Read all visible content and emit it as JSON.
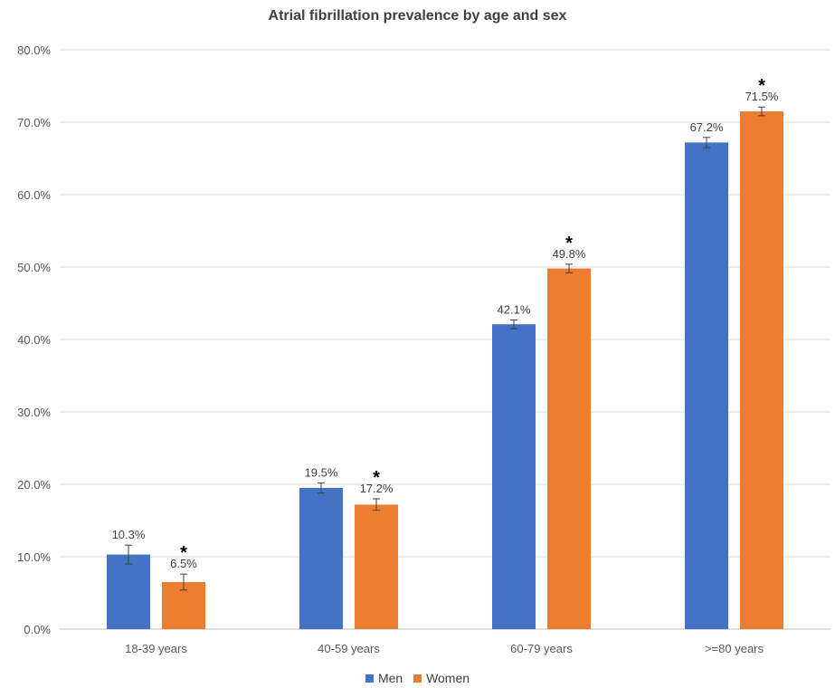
{
  "chart_data": {
    "type": "bar",
    "title": "Atrial fibrillation prevalence by age and sex",
    "categories": [
      "18-39 years",
      "40-59 years",
      "60-79 years",
      ">=80 years"
    ],
    "series": [
      {
        "name": "Men",
        "color": "#4472C4",
        "values": [
          10.3,
          19.5,
          42.1,
          67.2
        ],
        "value_labels": [
          "10.3%",
          "19.5%",
          "42.1%",
          "67.2%"
        ],
        "error": [
          1.3,
          0.7,
          0.6,
          0.7
        ],
        "marker": [
          "",
          "",
          "",
          ""
        ]
      },
      {
        "name": "Women",
        "color": "#ED7D31",
        "values": [
          6.5,
          17.2,
          49.8,
          71.5
        ],
        "value_labels": [
          "6.5%",
          "17.2%",
          "49.8%",
          "71.5%"
        ],
        "error": [
          1.1,
          0.8,
          0.6,
          0.6
        ],
        "marker": [
          "*",
          "*",
          "*",
          "*"
        ]
      }
    ],
    "ylim": [
      0,
      80
    ],
    "yticks": [
      0,
      10,
      20,
      30,
      40,
      50,
      60,
      70,
      80
    ],
    "ytick_labels": [
      "0.0%",
      "10.0%",
      "20.0%",
      "30.0%",
      "40.0%",
      "50.0%",
      "60.0%",
      "70.0%",
      "80.0%"
    ],
    "xlabel": "",
    "ylabel": "",
    "grid": true,
    "legend_position": "bottom"
  }
}
